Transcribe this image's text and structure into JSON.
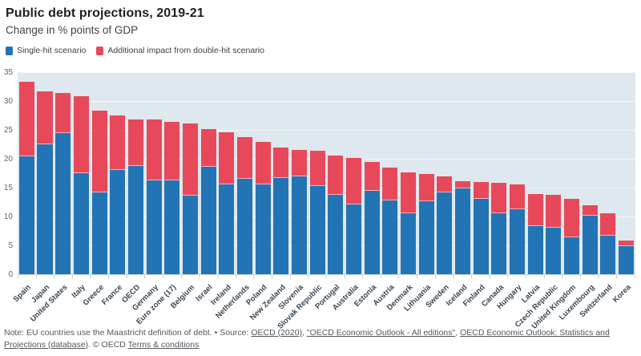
{
  "chart_data": {
    "type": "bar",
    "stacked": true,
    "title": "Public debt projections, 2019-21",
    "subtitle": "Change in % points of GDP",
    "categories": [
      "Spain",
      "Japan",
      "United States",
      "Italy",
      "Greece",
      "France",
      "OECD",
      "Germany",
      "Euro zone (17)",
      "Belgium",
      "Israel",
      "Ireland",
      "Netherlands",
      "Poland",
      "New Zealand",
      "Slovenia",
      "Slovak Republic",
      "Portugal",
      "Australia",
      "Estonia",
      "Austria",
      "Denmark",
      "Lithuania",
      "Sweden",
      "Iceland",
      "Finland",
      "Canada",
      "Hungary",
      "Latvia",
      "Czech Republic",
      "United Kingdom",
      "Luxembourg",
      "Switzerland",
      "Korea"
    ],
    "series": [
      {
        "name": "Single-hit scenario",
        "color": "#2374b5",
        "values": [
          20.4,
          22.5,
          24.5,
          17.5,
          14.2,
          18.0,
          18.8,
          16.2,
          16.3,
          13.6,
          18.6,
          15.6,
          16.5,
          15.6,
          16.6,
          17.0,
          15.3,
          13.7,
          12.1,
          14.4,
          12.8,
          10.5,
          12.6,
          14.2,
          14.8,
          13.0,
          10.5,
          11.3,
          8.4,
          8.0,
          6.4,
          10.2,
          6.7,
          4.9
        ]
      },
      {
        "name": "Additional impact from double-hit scenario",
        "color": "#e8495a",
        "values": [
          13.0,
          9.2,
          6.9,
          13.4,
          14.2,
          9.5,
          8.0,
          10.6,
          10.1,
          12.5,
          6.5,
          9.0,
          7.2,
          7.3,
          5.4,
          4.5,
          6.1,
          6.8,
          8.1,
          5.0,
          5.7,
          7.1,
          4.7,
          2.7,
          1.3,
          3.0,
          5.3,
          4.3,
          5.5,
          5.8,
          6.7,
          1.7,
          3.9,
          1.0
        ]
      }
    ],
    "ylim": [
      0,
      35
    ],
    "yticks": [
      0,
      5,
      10,
      15,
      20,
      25,
      30,
      35
    ],
    "grid": true,
    "legend_position": "top-left",
    "plot_bg": "#dfe8ee",
    "xlabel": "",
    "ylabel": ""
  },
  "footer": {
    "parts": [
      {
        "text": "Note: EU countries use the Maastricht definition of debt. • Source: ",
        "link": false
      },
      {
        "text": "OECD (2020)",
        "link": true
      },
      {
        "text": ", ",
        "link": false
      },
      {
        "text": "\"OECD Economic Outlook - All editions\"",
        "link": true
      },
      {
        "text": ", ",
        "link": false
      },
      {
        "text": "OECD Economic Outlook: Statistics and Projections (database)",
        "link": true
      },
      {
        "text": ". © OECD ",
        "link": false
      },
      {
        "text": "Terms & conditions",
        "link": true
      }
    ]
  }
}
